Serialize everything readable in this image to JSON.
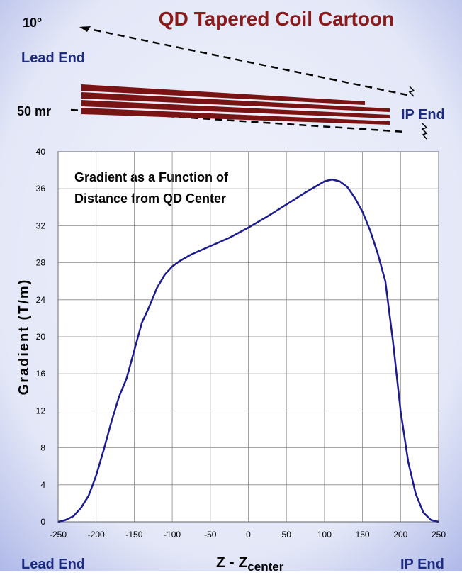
{
  "cartoon": {
    "title": "QD Tapered Coil Cartoon",
    "angle_label": "10°",
    "lead_end": "Lead End",
    "mr_label": "50 mr",
    "ip_end": "IP End"
  },
  "chart_data": {
    "type": "line",
    "annotation": [
      "Gradient as a Function of",
      "Distance from  QD Center"
    ],
    "ylabel": "Gradient (T/m)",
    "xlabel": "Z - Z",
    "xlabel_sub": "center",
    "left_label": "Lead End",
    "right_label": "IP End",
    "x": [
      -250,
      -240,
      -230,
      -220,
      -210,
      -200,
      -190,
      -180,
      -170,
      -160,
      -150,
      -140,
      -130,
      -120,
      -110,
      -100,
      -90,
      -75,
      -50,
      -25,
      0,
      25,
      50,
      75,
      100,
      110,
      120,
      130,
      140,
      150,
      160,
      170,
      180,
      190,
      200,
      210,
      220,
      230,
      240,
      250
    ],
    "series": [
      {
        "name": "Gradient",
        "color": "#1c1c8e",
        "values": [
          0,
          0.2,
          0.6,
          1.5,
          2.8,
          5,
          7.8,
          10.8,
          13.5,
          15.5,
          18.5,
          21.5,
          23.3,
          25.3,
          26.7,
          27.6,
          28.2,
          28.9,
          29.8,
          30.7,
          31.8,
          33,
          34.3,
          35.6,
          36.8,
          37,
          36.8,
          36.2,
          35,
          33.5,
          31.5,
          29,
          26,
          19.5,
          12,
          6.5,
          3,
          1,
          0.2,
          0
        ]
      }
    ],
    "xlim": [
      -250,
      250
    ],
    "xticks": [
      -250,
      -200,
      -150,
      -100,
      -50,
      0,
      50,
      100,
      150,
      200,
      250
    ],
    "ylim": [
      0,
      40
    ],
    "yticks": [
      0,
      4,
      8,
      12,
      16,
      20,
      24,
      28,
      32,
      36,
      40
    ],
    "grid": true
  }
}
